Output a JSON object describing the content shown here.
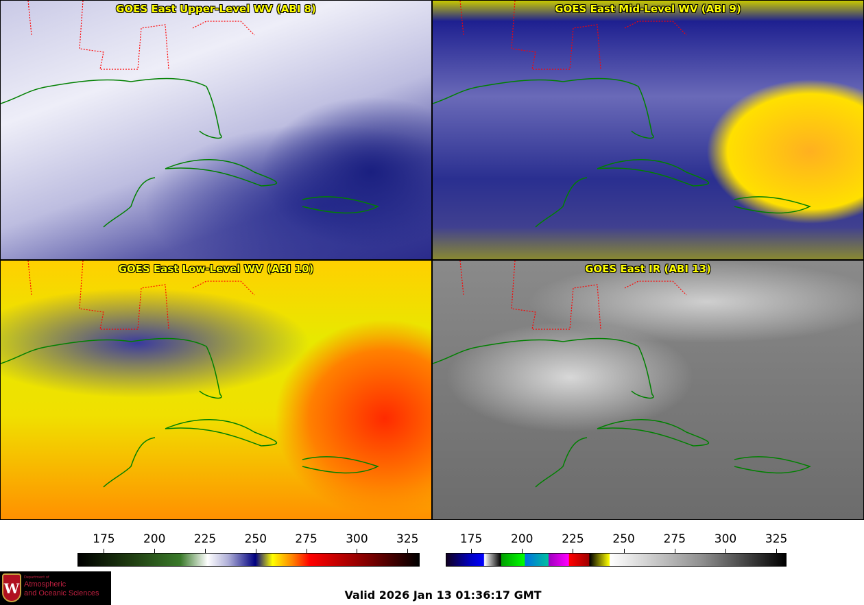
{
  "panels": [
    {
      "title": "GOES East Upper-Level WV (ABI 8)"
    },
    {
      "title": "GOES East Mid-Level WV (ABI 9)"
    },
    {
      "title": "GOES East Low-Level WV (ABI 10)"
    },
    {
      "title": "GOES East IR (ABI 13)"
    }
  ],
  "colorbars": [
    {
      "name": "water-vapor",
      "ticks": [
        175,
        200,
        225,
        250,
        275,
        300,
        325
      ],
      "range": [
        162,
        331
      ]
    },
    {
      "name": "infrared",
      "ticks": [
        175,
        200,
        225,
        250,
        275,
        300,
        325
      ],
      "range": [
        162.5,
        330
      ]
    }
  ],
  "logo": {
    "dept": "Department of",
    "line1": "Atmospheric",
    "line2": "and Oceanic Sciences",
    "shield": "W"
  },
  "valid": "Valid 2026 Jan 13 01:36:17 GMT",
  "colors": {
    "title": "#ffff00",
    "coast": "#008000",
    "states": "#ff0000"
  }
}
